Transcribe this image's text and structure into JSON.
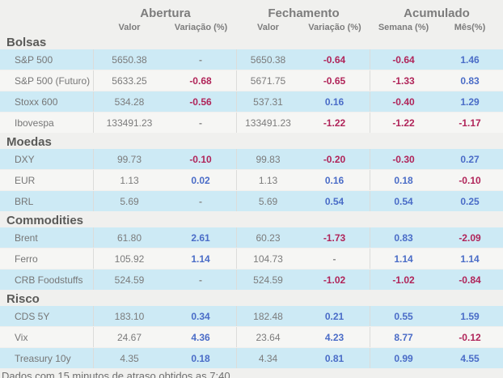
{
  "header": {
    "groups": [
      {
        "label": "Abertura"
      },
      {
        "label": "Fechamento"
      },
      {
        "label": "Acumulado"
      }
    ],
    "subcolumns": [
      "Valor",
      "Variação (%)",
      "Valor",
      "Variação (%)",
      "Semana (%)",
      "Mês(%)"
    ]
  },
  "sections": [
    {
      "title": "Bolsas",
      "rows": [
        {
          "label": "S&P 500",
          "cells": [
            "5650.38",
            "-",
            "5650.38",
            "-0.64",
            "-0.64",
            "1.46"
          ]
        },
        {
          "label": "S&P 500 (Futuro)",
          "cells": [
            "5633.25",
            "-0.68",
            "5671.75",
            "-0.65",
            "-1.33",
            "0.83"
          ]
        },
        {
          "label": "Stoxx 600",
          "cells": [
            "534.28",
            "-0.56",
            "537.31",
            "0.16",
            "-0.40",
            "1.29"
          ]
        },
        {
          "label": "Ibovespa",
          "cells": [
            "133491.23",
            "-",
            "133491.23",
            "-1.22",
            "-1.22",
            "-1.17"
          ]
        }
      ]
    },
    {
      "title": "Moedas",
      "rows": [
        {
          "label": "DXY",
          "cells": [
            "99.73",
            "-0.10",
            "99.83",
            "-0.20",
            "-0.30",
            "0.27"
          ]
        },
        {
          "label": "EUR",
          "cells": [
            "1.13",
            "0.02",
            "1.13",
            "0.16",
            "0.18",
            "-0.10"
          ]
        },
        {
          "label": "BRL",
          "cells": [
            "5.69",
            "-",
            "5.69",
            "0.54",
            "0.54",
            "0.25"
          ]
        }
      ]
    },
    {
      "title": "Commodities",
      "rows": [
        {
          "label": "Brent",
          "cells": [
            "61.80",
            "2.61",
            "60.23",
            "-1.73",
            "0.83",
            "-2.09"
          ]
        },
        {
          "label": "Ferro",
          "cells": [
            "105.92",
            "1.14",
            "104.73",
            "-",
            "1.14",
            "1.14"
          ]
        },
        {
          "label": "CRB Foodstuffs",
          "cells": [
            "524.59",
            "-",
            "524.59",
            "-1.02",
            "-1.02",
            "-0.84"
          ]
        }
      ]
    },
    {
      "title": "Risco",
      "rows": [
        {
          "label": "CDS 5Y",
          "cells": [
            "183.10",
            "0.34",
            "182.48",
            "0.21",
            "0.55",
            "1.59"
          ]
        },
        {
          "label": "Vix",
          "cells": [
            "24.67",
            "4.36",
            "23.64",
            "4.23",
            "8.77",
            "-0.12"
          ]
        },
        {
          "label": "Treasury 10y",
          "cells": [
            "4.35",
            "0.18",
            "4.34",
            "0.81",
            "0.99",
            "4.55"
          ]
        }
      ]
    }
  ],
  "footer": "Dados com 15 minutos de atraso obtidos as 7:40",
  "colors": {
    "positive": "#4a6cc7",
    "negative": "#b02459",
    "neutral_text": "#7b7b7b",
    "row_highlight": "#cdeaf5",
    "row_plain": "#f6f6f4",
    "background": "#f0f0ee"
  }
}
